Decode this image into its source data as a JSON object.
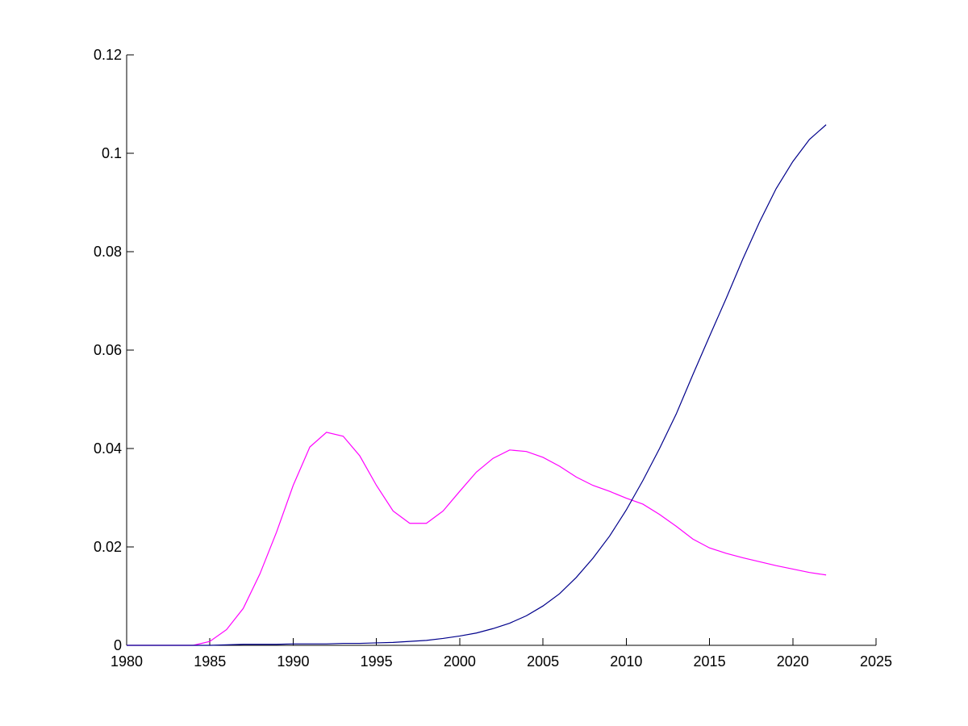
{
  "chart_data": {
    "type": "line",
    "title": "",
    "xlabel": "",
    "ylabel": "",
    "xlim": [
      1980,
      2025
    ],
    "ylim": [
      0,
      0.12
    ],
    "xticks": [
      1980,
      1985,
      1990,
      1995,
      2000,
      2005,
      2010,
      2015,
      2020,
      2025
    ],
    "xtick_labels": [
      "1980",
      "1985",
      "1990",
      "1995",
      "2000",
      "2005",
      "2010",
      "2015",
      "2020",
      "2025"
    ],
    "yticks": [
      0,
      0.02,
      0.04,
      0.06,
      0.08,
      0.1,
      0.12
    ],
    "ytick_labels": [
      "0",
      "0.02",
      "0.04",
      "0.06",
      "0.08",
      "0.1",
      "0.12"
    ],
    "grid": false,
    "legend": "none",
    "x": [
      1980,
      1981,
      1982,
      1983,
      1984,
      1985,
      1986,
      1987,
      1988,
      1989,
      1990,
      1991,
      1992,
      1993,
      1994,
      1995,
      1996,
      1997,
      1998,
      1999,
      2000,
      2001,
      2002,
      2003,
      2004,
      2005,
      2006,
      2007,
      2008,
      2009,
      2010,
      2011,
      2012,
      2013,
      2014,
      2015,
      2016,
      2017,
      2018,
      2019,
      2020,
      2021,
      2022
    ],
    "series": [
      {
        "color": "#ff00ff",
        "values": [
          0,
          0,
          0,
          0,
          0,
          0.0008,
          0.0032,
          0.0075,
          0.0145,
          0.023,
          0.0325,
          0.0403,
          0.0433,
          0.0425,
          0.0385,
          0.0325,
          0.0273,
          0.0248,
          0.0248,
          0.0273,
          0.0313,
          0.0352,
          0.038,
          0.0397,
          0.0394,
          0.0382,
          0.0364,
          0.0342,
          0.0325,
          0.0313,
          0.0299,
          0.0287,
          0.0266,
          0.0242,
          0.0216,
          0.0198,
          0.0187,
          0.0178,
          0.017,
          0.0162,
          0.0155,
          0.0148,
          0.0143
        ]
      },
      {
        "color": "#00008b",
        "values": [
          0,
          0,
          0,
          0,
          0,
          0,
          0.0001,
          0.0002,
          0.0002,
          0.0002,
          0.0003,
          0.0003,
          0.0003,
          0.0004,
          0.0004,
          0.0005,
          0.0006,
          0.0008,
          0.001,
          0.0014,
          0.0019,
          0.0025,
          0.0034,
          0.0045,
          0.006,
          0.008,
          0.0105,
          0.0138,
          0.0177,
          0.0222,
          0.0275,
          0.0335,
          0.04,
          0.047,
          0.055,
          0.0628,
          0.0705,
          0.0785,
          0.086,
          0.0928,
          0.0983,
          0.1028,
          0.1058
        ]
      }
    ]
  }
}
